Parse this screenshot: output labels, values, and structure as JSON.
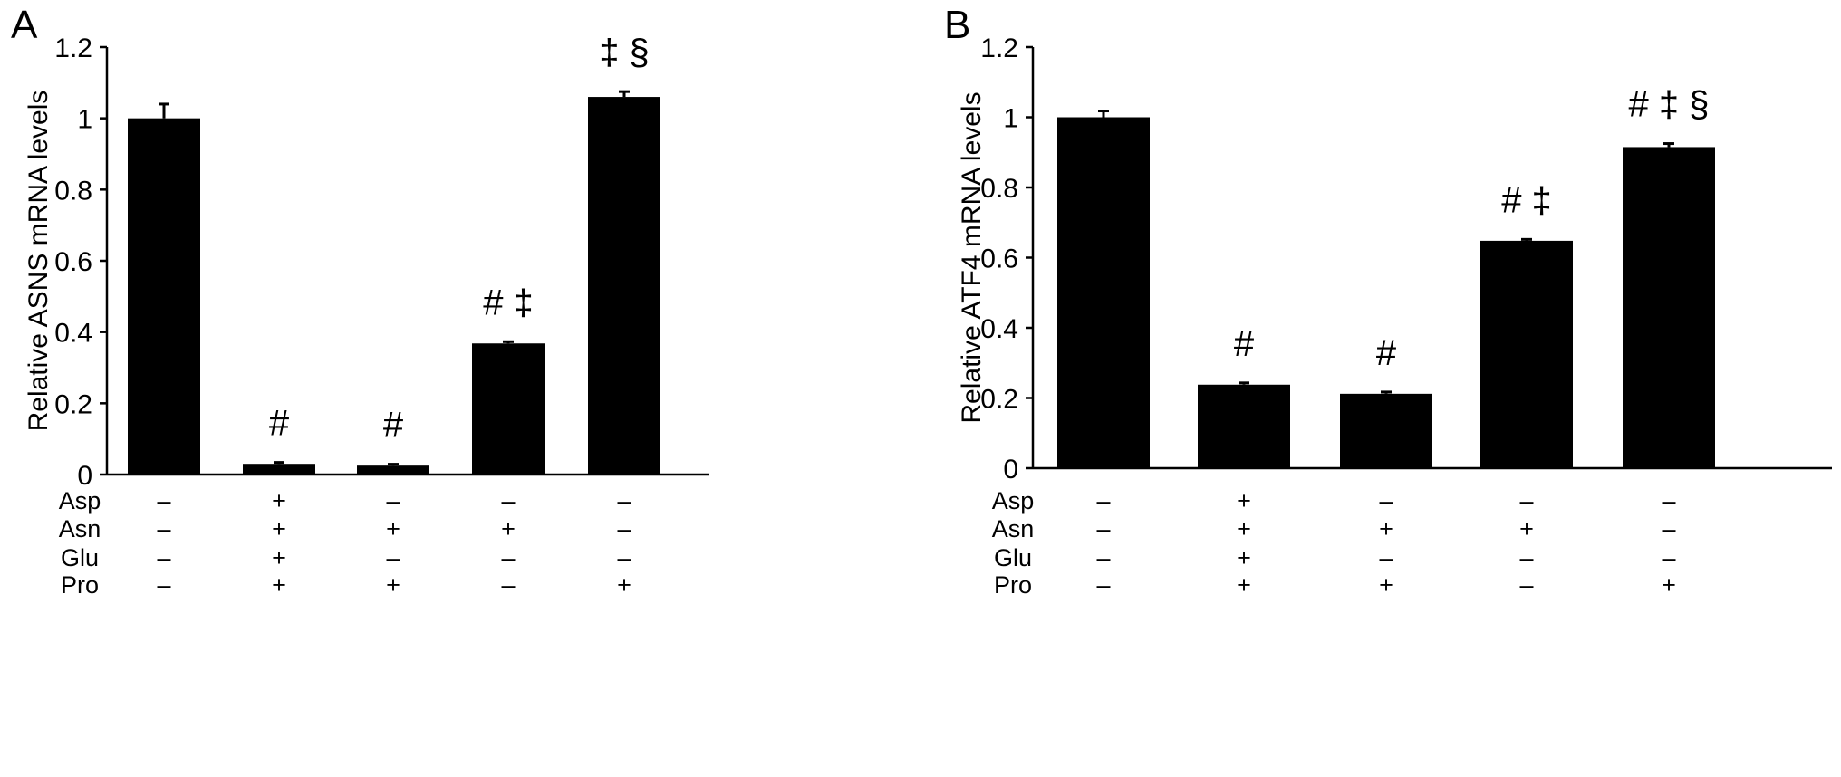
{
  "chart_data": [
    {
      "panel": "A",
      "type": "bar",
      "ylabel": "Relative ASNS mRNA levels",
      "ylim": [
        0,
        1.2
      ],
      "yticks": [
        0,
        0.2,
        0.4,
        0.6,
        0.8,
        1,
        1.2
      ],
      "ytick_labels": [
        "0",
        "0.2",
        "0.4",
        "0.6",
        "0.8",
        "1",
        "1.2"
      ],
      "bar_color": "#000000",
      "values": [
        1.0,
        0.03,
        0.025,
        0.368,
        1.06
      ],
      "errors": [
        0.04,
        0.004,
        0.004,
        0.005,
        0.015
      ],
      "annotations": [
        "",
        "#",
        "#",
        "# ‡",
        "‡ §"
      ],
      "conditions": [
        {
          "label": "Asp",
          "marks": [
            "–",
            "+",
            "–",
            "–",
            "–"
          ]
        },
        {
          "label": "Asn",
          "marks": [
            "–",
            "+",
            "+",
            "+",
            "–"
          ]
        },
        {
          "label": "Glu",
          "marks": [
            "–",
            "+",
            "–",
            "–",
            "–"
          ]
        },
        {
          "label": "Pro",
          "marks": [
            "–",
            "+",
            "+",
            "–",
            "+"
          ]
        }
      ]
    },
    {
      "panel": "B",
      "type": "bar",
      "ylabel": "Relative ATF4 mRNA levels",
      "ylim": [
        0,
        1.2
      ],
      "yticks": [
        0,
        0.2,
        0.4,
        0.6,
        0.8,
        1,
        1.2
      ],
      "ytick_labels": [
        "0",
        "0.2",
        "0.4",
        "0.6",
        "0.8",
        "1",
        "1.2"
      ],
      "bar_color": "#000000",
      "values": [
        1.0,
        0.238,
        0.212,
        0.648,
        0.915
      ],
      "errors": [
        0.018,
        0.005,
        0.005,
        0.004,
        0.01
      ],
      "annotations": [
        "",
        "#",
        "#",
        "# ‡",
        "# ‡ §"
      ],
      "conditions": [
        {
          "label": "Asp",
          "marks": [
            "–",
            "+",
            "–",
            "–",
            "–"
          ]
        },
        {
          "label": "Asn",
          "marks": [
            "–",
            "+",
            "+",
            "+",
            "–"
          ]
        },
        {
          "label": "Glu",
          "marks": [
            "–",
            "+",
            "–",
            "–",
            "–"
          ]
        },
        {
          "label": "Pro",
          "marks": [
            "–",
            "+",
            "+",
            "–",
            "+"
          ]
        }
      ]
    }
  ]
}
